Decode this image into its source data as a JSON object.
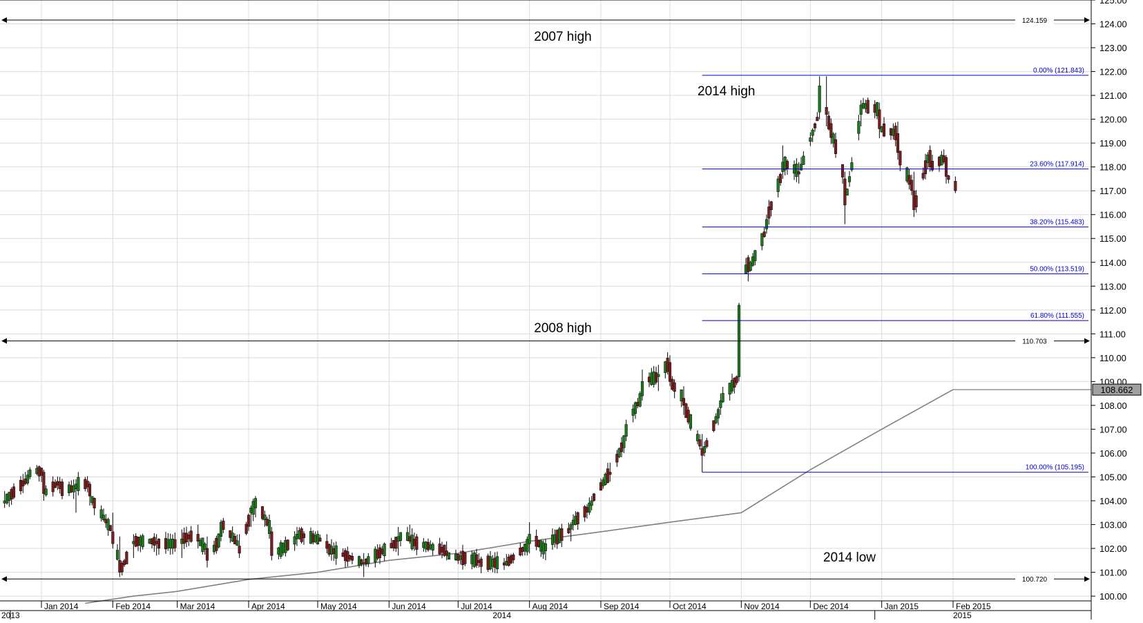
{
  "chart_data": {
    "type": "candlestick",
    "title": "",
    "xlabel": "",
    "ylabel": "",
    "ylim": [
      99.8,
      125.0
    ],
    "grid": true,
    "y_ticks": [
      "100.00",
      "101.00",
      "102.00",
      "103.00",
      "104.00",
      "105.00",
      "106.00",
      "107.00",
      "108.00",
      "109.00",
      "110.00",
      "111.00",
      "112.00",
      "113.00",
      "114.00",
      "115.00",
      "116.00",
      "117.00",
      "118.00",
      "119.00",
      "120.00",
      "121.00",
      "122.00",
      "123.00",
      "124.00",
      "125.00"
    ],
    "x_month_labels": [
      "Jan 2014",
      "Feb 2014",
      "Mar 2014",
      "Apr 2014",
      "May 2014",
      "Jun 2014",
      "Jul 2014",
      "Aug 2014",
      "Sep 2014",
      "Oct 2014",
      "Nov 2014",
      "Dec 2014",
      "Jan 2015",
      "Feb 2015"
    ],
    "x_year_labels": [
      "2013",
      "2014",
      "2015"
    ],
    "ohlc_keypoints": [
      {
        "date": "2013-12-16",
        "open": 103.9,
        "high": 104.4,
        "low": 103.7,
        "close": 104.0
      },
      {
        "date": "2013-12-27",
        "open": 105.0,
        "high": 105.4,
        "low": 104.9,
        "close": 105.3
      },
      {
        "date": "2014-01-02",
        "open": 105.2,
        "high": 105.3,
        "low": 104.0,
        "close": 104.3
      },
      {
        "date": "2014-01-09",
        "open": 104.8,
        "high": 105.0,
        "low": 104.3,
        "close": 104.5
      },
      {
        "date": "2014-01-16",
        "open": 104.5,
        "high": 104.9,
        "low": 103.5,
        "close": 104.7
      },
      {
        "date": "2014-01-22",
        "open": 104.7,
        "high": 104.8,
        "low": 103.8,
        "close": 104.2
      },
      {
        "date": "2014-02-01",
        "open": 102.7,
        "high": 103.5,
        "low": 102.0,
        "close": 102.2
      },
      {
        "date": "2014-02-04",
        "open": 101.5,
        "high": 102.5,
        "low": 100.8,
        "close": 101.0
      },
      {
        "date": "2014-02-10",
        "open": 102.2,
        "high": 102.6,
        "low": 101.6,
        "close": 102.3
      },
      {
        "date": "2014-02-20",
        "open": 102.3,
        "high": 102.6,
        "low": 101.7,
        "close": 102.2
      },
      {
        "date": "2014-03-03",
        "open": 102.2,
        "high": 102.8,
        "low": 101.6,
        "close": 102.4
      },
      {
        "date": "2014-03-10",
        "open": 102.6,
        "high": 103.0,
        "low": 102.0,
        "close": 102.3
      },
      {
        "date": "2014-03-14",
        "open": 102.0,
        "high": 102.5,
        "low": 101.2,
        "close": 101.5
      },
      {
        "date": "2014-03-20",
        "open": 102.5,
        "high": 103.2,
        "low": 102.3,
        "close": 103.1
      },
      {
        "date": "2014-03-28",
        "open": 102.1,
        "high": 102.6,
        "low": 101.6,
        "close": 101.8
      },
      {
        "date": "2014-04-02",
        "open": 103.5,
        "high": 103.8,
        "low": 102.9,
        "close": 103.7
      },
      {
        "date": "2014-04-04",
        "open": 103.7,
        "high": 104.2,
        "low": 103.3,
        "close": 104.1
      },
      {
        "date": "2014-04-11",
        "open": 102.7,
        "high": 102.9,
        "low": 101.5,
        "close": 101.7
      },
      {
        "date": "2014-04-22",
        "open": 102.4,
        "high": 102.9,
        "low": 102.1,
        "close": 102.6
      },
      {
        "date": "2014-05-05",
        "open": 102.3,
        "high": 102.6,
        "low": 101.8,
        "close": 102.0
      },
      {
        "date": "2014-05-21",
        "open": 101.4,
        "high": 101.8,
        "low": 100.8,
        "close": 101.4
      },
      {
        "date": "2014-06-05",
        "open": 102.3,
        "high": 102.9,
        "low": 101.7,
        "close": 102.5
      },
      {
        "date": "2014-06-10",
        "open": 102.5,
        "high": 103.0,
        "low": 102.2,
        "close": 102.3
      },
      {
        "date": "2014-06-26",
        "open": 101.9,
        "high": 102.3,
        "low": 101.5,
        "close": 101.7
      },
      {
        "date": "2014-07-10",
        "open": 101.5,
        "high": 101.8,
        "low": 101.2,
        "close": 101.4
      },
      {
        "date": "2014-07-21",
        "open": 101.4,
        "high": 101.6,
        "low": 101.1,
        "close": 101.3
      },
      {
        "date": "2014-08-01",
        "open": 102.2,
        "high": 103.1,
        "low": 101.8,
        "close": 102.6
      },
      {
        "date": "2014-08-08",
        "open": 101.9,
        "high": 102.4,
        "low": 101.5,
        "close": 102.2
      },
      {
        "date": "2014-08-19",
        "open": 102.8,
        "high": 103.1,
        "low": 102.3,
        "close": 103.0
      },
      {
        "date": "2014-08-28",
        "open": 103.8,
        "high": 104.2,
        "low": 103.6,
        "close": 104.0
      },
      {
        "date": "2014-09-05",
        "open": 105.2,
        "high": 105.6,
        "low": 104.8,
        "close": 105.1
      },
      {
        "date": "2014-09-12",
        "open": 106.7,
        "high": 107.4,
        "low": 106.5,
        "close": 107.2
      },
      {
        "date": "2014-09-19",
        "open": 108.4,
        "high": 109.5,
        "low": 108.2,
        "close": 109.0
      },
      {
        "date": "2014-09-26",
        "open": 109.2,
        "high": 109.7,
        "low": 108.6,
        "close": 109.3
      },
      {
        "date": "2014-10-01",
        "open": 109.8,
        "high": 110.1,
        "low": 108.8,
        "close": 109.0
      },
      {
        "date": "2014-10-07",
        "open": 108.3,
        "high": 108.8,
        "low": 107.6,
        "close": 108.0
      },
      {
        "date": "2014-10-15",
        "open": 106.2,
        "high": 106.8,
        "low": 105.2,
        "close": 105.9
      },
      {
        "date": "2014-10-23",
        "open": 107.9,
        "high": 108.5,
        "low": 107.6,
        "close": 108.2
      },
      {
        "date": "2014-10-31",
        "open": 109.2,
        "high": 112.3,
        "low": 109.0,
        "close": 112.2
      },
      {
        "date": "2014-11-04",
        "open": 114.2,
        "high": 114.3,
        "low": 113.2,
        "close": 113.6
      },
      {
        "date": "2014-11-12",
        "open": 115.4,
        "high": 116.0,
        "low": 115.2,
        "close": 115.8
      },
      {
        "date": "2014-11-19",
        "open": 117.8,
        "high": 118.9,
        "low": 117.5,
        "close": 118.2
      },
      {
        "date": "2014-11-26",
        "open": 117.8,
        "high": 118.2,
        "low": 117.3,
        "close": 117.7
      },
      {
        "date": "2014-12-05",
        "open": 120.3,
        "high": 121.8,
        "low": 120.0,
        "close": 121.4
      },
      {
        "date": "2014-12-08",
        "open": 120.5,
        "high": 121.8,
        "low": 119.7,
        "close": 120.2
      },
      {
        "date": "2014-12-16",
        "open": 117.5,
        "high": 117.8,
        "low": 115.6,
        "close": 116.4
      },
      {
        "date": "2014-12-23",
        "open": 120.2,
        "high": 120.8,
        "low": 119.7,
        "close": 120.6
      },
      {
        "date": "2014-12-31",
        "open": 120.4,
        "high": 120.7,
        "low": 119.2,
        "close": 119.6
      },
      {
        "date": "2015-01-08",
        "open": 119.4,
        "high": 119.9,
        "low": 118.3,
        "close": 118.6
      },
      {
        "date": "2015-01-15",
        "open": 117.0,
        "high": 117.8,
        "low": 115.9,
        "close": 116.2
      },
      {
        "date": "2015-01-22",
        "open": 118.7,
        "high": 118.9,
        "low": 117.8,
        "close": 118.0
      },
      {
        "date": "2015-01-29",
        "open": 118.4,
        "high": 118.5,
        "low": 117.3,
        "close": 117.6
      },
      {
        "date": "2015-02-02",
        "open": 117.4,
        "high": 117.6,
        "low": 116.9,
        "close": 117.0
      }
    ],
    "moving_average": [
      {
        "date": "2014-01-20",
        "value": 99.7
      },
      {
        "date": "2014-02-10",
        "value": 100.0
      },
      {
        "date": "2014-03-01",
        "value": 100.2
      },
      {
        "date": "2014-04-01",
        "value": 100.7
      },
      {
        "date": "2014-05-01",
        "value": 101.0
      },
      {
        "date": "2014-06-01",
        "value": 101.5
      },
      {
        "date": "2014-07-01",
        "value": 101.8
      },
      {
        "date": "2014-08-01",
        "value": 102.3
      },
      {
        "date": "2014-09-01",
        "value": 102.7
      },
      {
        "date": "2014-10-01",
        "value": 103.1
      },
      {
        "date": "2014-11-01",
        "value": 103.5
      },
      {
        "date": "2014-12-01",
        "value": 105.3
      },
      {
        "date": "2015-01-01",
        "value": 107.0
      },
      {
        "date": "2015-02-01",
        "value": 108.66
      }
    ],
    "last_price": "108.662",
    "horizontal_levels": [
      {
        "label": "124.159",
        "value": 124.159,
        "note": "2007 high"
      },
      {
        "label": "110.703",
        "value": 110.703,
        "note": "2008 high"
      },
      {
        "label": "100.720",
        "value": 100.72,
        "note": "2014 low"
      }
    ],
    "fibonacci": [
      {
        "label": "0.00% (121.843)",
        "value": 121.843
      },
      {
        "label": "23.60% (117.914)",
        "value": 117.914
      },
      {
        "label": "38.20% (115.483)",
        "value": 115.483
      },
      {
        "label": "50.00% (113.519)",
        "value": 113.519
      },
      {
        "label": "61.80% (111.555)",
        "value": 111.555
      },
      {
        "label": "100.00% (105.195)",
        "value": 105.195
      }
    ],
    "annotations": {
      "high_2007": "2007 high",
      "high_2008": "2008 high",
      "high_2014": "2014 high",
      "low_2014": "2014 low"
    },
    "colors": {
      "up": "#1f7a1f",
      "down": "#7a1f1f",
      "fib": "#0000cc",
      "level": "#000000",
      "ma": "#808080",
      "grid": "#dcdcdc"
    }
  }
}
